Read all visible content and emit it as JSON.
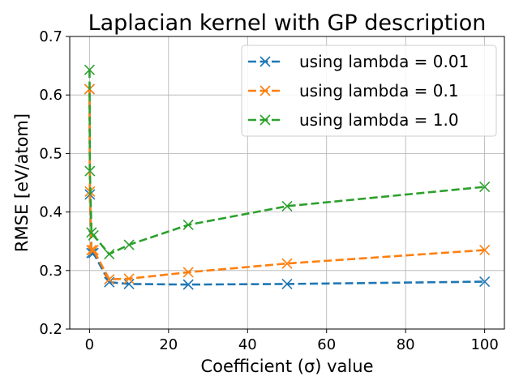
{
  "chart_data": {
    "type": "line",
    "title": "Laplacian kernel with GP description",
    "xlabel": "Coefficient (σ) value",
    "ylabel": "RMSE [eV/atom]",
    "xlim": [
      -5,
      105
    ],
    "ylim": [
      0.2,
      0.7
    ],
    "xticks": [
      0,
      20,
      40,
      60,
      80,
      100
    ],
    "yticks": [
      0.2,
      0.3,
      0.4,
      0.5,
      0.6,
      0.7
    ],
    "grid": true,
    "legend_position": "top-right",
    "x": [
      0.01,
      0.1,
      0.5,
      1,
      5,
      10,
      25,
      50,
      100
    ],
    "series": [
      {
        "name": "using lambda = 0.01",
        "color": "#1f77b4",
        "marker": "x",
        "linestyle": "dashed",
        "values": [
          0.61,
          0.43,
          0.33,
          0.33,
          0.28,
          0.277,
          0.276,
          0.277,
          0.281
        ]
      },
      {
        "name": "using lambda = 0.1",
        "color": "#ff7f0e",
        "marker": "x",
        "linestyle": "dashed",
        "values": [
          0.61,
          0.435,
          0.335,
          0.335,
          0.285,
          0.286,
          0.297,
          0.312,
          0.335
        ]
      },
      {
        "name": "using lambda = 1.0",
        "color": "#2ca02c",
        "marker": "x",
        "linestyle": "dashed",
        "values": [
          0.643,
          0.47,
          0.365,
          0.36,
          0.328,
          0.344,
          0.378,
          0.41,
          0.443
        ]
      }
    ]
  }
}
